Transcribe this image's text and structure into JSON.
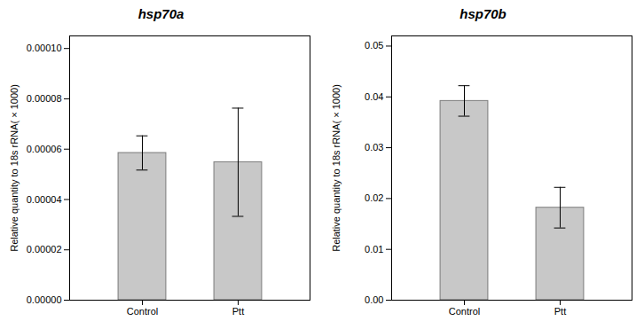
{
  "chart_data": [
    {
      "type": "bar",
      "title": "hsp70a",
      "categories": [
        "Control",
        "Ptt"
      ],
      "values": [
        5.85e-05,
        5.48e-05
      ],
      "errors": [
        6.8e-06,
        2.15e-05
      ],
      "ylabel": "Relative quantity to 18s rRNA( × 1000)",
      "color": "#c8c8c8",
      "ylim": [
        0,
        0.000105
      ],
      "yticks": [
        {
          "value": 0,
          "label": "0.00000"
        },
        2e-05,
        4e-05,
        6e-05,
        8e-05,
        {
          "value": 0.0001,
          "label": "0.00010"
        }
      ]
    },
    {
      "type": "bar",
      "title": "hsp70b",
      "categories": [
        "Control",
        "Ptt"
      ],
      "values": [
        0.0392,
        0.0182
      ],
      "errors": [
        0.003,
        0.004
      ],
      "ylabel": "Relative quantity to 18s rRNA( × 1000)",
      "color": "#c8c8c8",
      "ylim": [
        0,
        0.052
      ],
      "yticks": [
        {
          "value": 0,
          "label": "0.00"
        },
        0.01,
        0.02,
        0.03,
        0.04,
        0.05
      ]
    }
  ]
}
